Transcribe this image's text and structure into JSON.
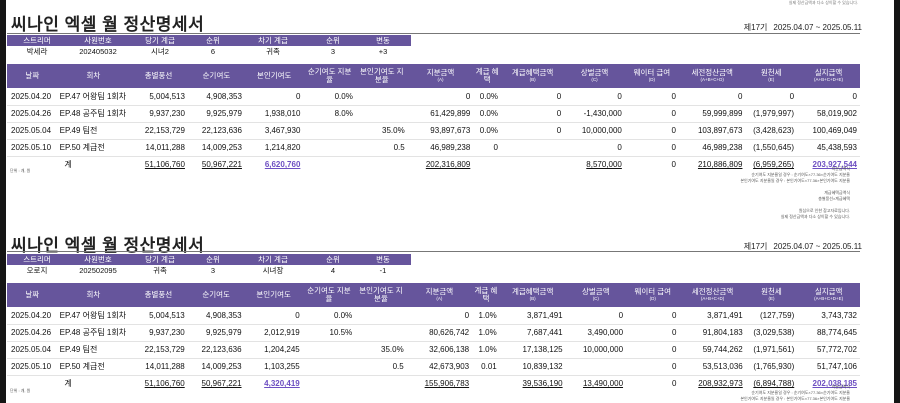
{
  "top_note": "실제 정산금액과 다소 상이할 수 있습니다.",
  "columns": [
    {
      "label": "날짜",
      "sub": ""
    },
    {
      "label": "회차",
      "sub": ""
    },
    {
      "label": "총별풍선",
      "sub": ""
    },
    {
      "label": "순기여도",
      "sub": ""
    },
    {
      "label": "본인기여도",
      "sub": ""
    },
    {
      "label": "순기여도 지분율",
      "sub": ""
    },
    {
      "label": "본인기여도 지분율",
      "sub": ""
    },
    {
      "label": "지분금액",
      "sub": "(A)"
    },
    {
      "label": "계급 혜택",
      "sub": ""
    },
    {
      "label": "계급혜택금액",
      "sub": "(B)"
    },
    {
      "label": "상벌금액",
      "sub": "(C)"
    },
    {
      "label": "웨이터 급여",
      "sub": "(D)"
    },
    {
      "label": "세전정산금액",
      "sub": "(A+B+C+D)"
    },
    {
      "label": "원천세",
      "sub": "(E)"
    },
    {
      "label": "실지급액",
      "sub": "(A+B+C+D+E)"
    }
  ],
  "info_headers": [
    "스트리머",
    "사원번호",
    "당기 계급",
    "순위",
    "차기 계급",
    "순위",
    "변동"
  ],
  "unit_note": "단위 : 개, 원",
  "statements": [
    {
      "title": "씨나인 엑셀 월 정산명세서",
      "round": "제17기",
      "period": "2025.04.07 ~ 2025.05.11",
      "info": [
        "박세라",
        "202405032",
        "시녀2",
        "6",
        "귀족",
        "3",
        "+3"
      ],
      "rows": [
        [
          "2025.04.20",
          "EP.47 어왕팀 1회차",
          "5,004,513",
          "4,908,353",
          "0",
          "0.0%",
          "",
          "0",
          "0.0%",
          "0",
          "0",
          "0",
          "0",
          "0",
          "0"
        ],
        [
          "2025.04.26",
          "EP.48 공주팀 1회차",
          "9,937,230",
          "9,925,979",
          "1,938,010",
          "8.0%",
          "",
          "61,429,899",
          "0.0%",
          "0",
          "-1,430,000",
          "0",
          "59,999,899",
          "(1,979,997)",
          "58,019,902"
        ],
        [
          "2025.05.04",
          "EP.49 팀전",
          "22,153,729",
          "22,123,636",
          "3,467,930",
          "",
          "35.0%",
          "93,897,673",
          "0.0%",
          "0",
          "10,000,000",
          "0",
          "103,897,673",
          "(3,428,623)",
          "100,469,049"
        ],
        [
          "2025.05.10",
          "EP.50 계급전",
          "14,011,288",
          "14,009,253",
          "1,214,820",
          "",
          "0.5",
          "46,989,238",
          "0",
          "",
          "0",
          "0",
          "46,989,238",
          "(1,550,645)",
          "45,438,593"
        ]
      ],
      "total": [
        "계",
        "51,106,760",
        "50,967,221",
        "6,620,760",
        "",
        "",
        "202,316,809",
        "",
        "",
        "8,570,000",
        "0",
        "210,886,809",
        "(6,959,265)",
        "203,927,544"
      ],
      "notes": [
        "지분금액식",
        "순기여도 지분율일 경우 : 순기여도×77.36×순기여도 지분율",
        "본인기여도 지분율일 경우 : 본인기여도×77.36×본인기여도 지분율",
        "",
        "계급혜택금액식",
        "총별풍선×계급혜택",
        "",
        "원심으로 인한 참고자료입니다.",
        "실제 정산금액과 다소 상이할 수 있습니다."
      ]
    },
    {
      "title": "씨나인 엑셀 월 정산명세서",
      "round": "제17기",
      "period": "2025.04.07 ~ 2025.05.11",
      "info": [
        "오로지",
        "202502095",
        "귀족",
        "3",
        "시녀장",
        "4",
        "-1"
      ],
      "rows": [
        [
          "2025.04.20",
          "EP.47 어왕팀 1회차",
          "5,004,513",
          "4,908,353",
          "0",
          "0.0%",
          "",
          "0",
          "1.0%",
          "3,871,491",
          "0",
          "0",
          "3,871,491",
          "(127,759)",
          "3,743,732"
        ],
        [
          "2025.04.26",
          "EP.48 공주팀 1회차",
          "9,937,230",
          "9,925,979",
          "2,012,919",
          "10.5%",
          "",
          "80,626,742",
          "1.0%",
          "7,687,441",
          "3,490,000",
          "0",
          "91,804,183",
          "(3,029,538)",
          "88,774,645"
        ],
        [
          "2025.05.04",
          "EP.49 팀전",
          "22,153,729",
          "22,123,636",
          "1,204,245",
          "",
          "35.0%",
          "32,606,138",
          "1.0%",
          "17,138,125",
          "10,000,000",
          "0",
          "59,744,262",
          "(1,971,561)",
          "57,772,702"
        ],
        [
          "2025.05.10",
          "EP.50 계급전",
          "14,011,288",
          "14,009,253",
          "1,103,255",
          "",
          "0.5",
          "42,673,903",
          "0.01",
          "10,839,132",
          "",
          "0",
          "53,513,036",
          "(1,765,930)",
          "51,747,106"
        ]
      ],
      "total": [
        "계",
        "51,106,760",
        "50,967,221",
        "4,320,419",
        "",
        "",
        "155,906,783",
        "",
        "39,536,190",
        "13,490,000",
        "0",
        "208,932,973",
        "(6,894,788)",
        "202,038,185"
      ],
      "notes": [
        "지분금액식",
        "순기여도 지분율일 경우 : 순기여도×77.36×순기여도 지분율",
        "본인기여도 지분율일 경우 : 본인기여도×77.36×본인기여도 지분율"
      ]
    }
  ]
}
